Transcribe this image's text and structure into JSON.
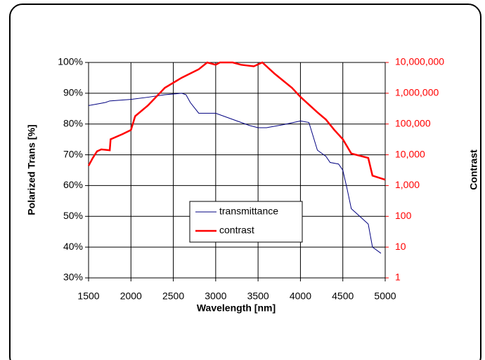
{
  "chart_data": {
    "type": "line",
    "xlabel": "Wavelength [nm]",
    "ylabel": "Polarized Trans [%]",
    "y2label": "Contrast",
    "xlim": [
      1500,
      5000
    ],
    "xticks": [
      1500,
      2000,
      2500,
      3000,
      3500,
      4000,
      4500,
      5000
    ],
    "ylim": [
      30,
      100
    ],
    "yticks": [
      {
        "value": 30,
        "label": "30%"
      },
      {
        "value": 40,
        "label": "40%"
      },
      {
        "value": 50,
        "label": "50%"
      },
      {
        "value": 60,
        "label": "60%"
      },
      {
        "value": 70,
        "label": "70%"
      },
      {
        "value": 80,
        "label": "80%"
      },
      {
        "value": 90,
        "label": "90%"
      },
      {
        "value": 100,
        "label": "100%"
      }
    ],
    "y2lim": [
      1,
      10000000
    ],
    "y2log": true,
    "y2ticks": [
      1,
      10,
      100,
      {
        "value": 1000,
        "label": "1,000"
      },
      {
        "value": 10000,
        "label": "10,000"
      },
      {
        "value": 100000,
        "label": "100,000"
      },
      {
        "value": 1000000,
        "label": "1,000,000"
      },
      {
        "value": 10000000,
        "label": "10,000,000"
      }
    ],
    "grid": true,
    "legend": "center",
    "series": [
      {
        "name": "transmittance",
        "color": "#000080",
        "x": [
          1500,
          1600,
          1700,
          1750,
          2000,
          2200,
          2400,
          2600,
          2650,
          2700,
          2800,
          3000,
          3200,
          3400,
          3500,
          3600,
          3800,
          4000,
          4100,
          4150,
          4200,
          4300,
          4350,
          4450,
          4500,
          4550,
          4600,
          4700,
          4800,
          4850,
          4950
        ],
        "values": [
          86,
          86.5,
          87,
          87.5,
          88,
          88.7,
          89.5,
          90,
          89.5,
          87,
          83.5,
          83.5,
          81.5,
          79.5,
          78.8,
          78.8,
          79.8,
          81,
          80.5,
          76,
          71.5,
          69.5,
          67.5,
          67,
          65,
          59,
          52.5,
          50,
          47.5,
          40,
          38
        ]
      },
      {
        "name": "contrast",
        "color": "#ff0000",
        "axis": "y2",
        "x": [
          1500,
          1550,
          1600,
          1650,
          1750,
          1760,
          1900,
          2000,
          2050,
          2200,
          2400,
          2600,
          2800,
          2900,
          3000,
          3050,
          3200,
          3300,
          3450,
          3550,
          3700,
          3900,
          4000,
          4200,
          4300,
          4400,
          4500,
          4600,
          4800,
          4850,
          5000
        ],
        "values": [
          4400,
          7900,
          13000,
          15000,
          14000,
          32000,
          47000,
          64000,
          180000,
          400000,
          1500000,
          3200000,
          6000000,
          10000000,
          8400000,
          10000000,
          10000000,
          8400000,
          7500000,
          10000000,
          4200000,
          1500000,
          760000,
          240000,
          140000,
          64000,
          32000,
          11000,
          7900,
          2100,
          1550
        ]
      }
    ]
  }
}
